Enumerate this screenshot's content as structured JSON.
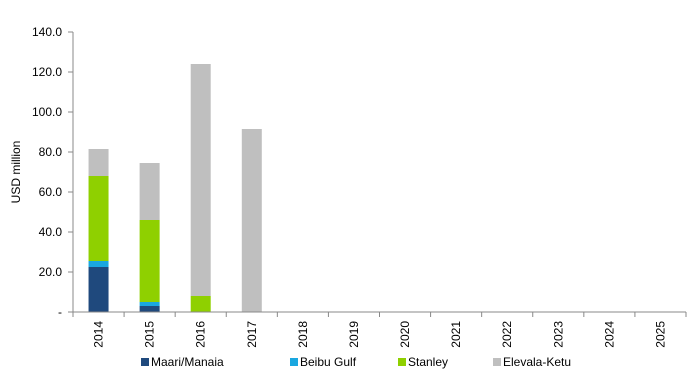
{
  "chart_data": {
    "type": "bar",
    "stacked": true,
    "categories": [
      "2014",
      "2015",
      "2016",
      "2017",
      "2018",
      "2019",
      "2020",
      "2021",
      "2022",
      "2023",
      "2024",
      "2025"
    ],
    "series": [
      {
        "name": "Maari/Manaia",
        "color": "#1f497d",
        "values": [
          22.5,
          3,
          0,
          0,
          0,
          0,
          0,
          0,
          0,
          0,
          0,
          0
        ]
      },
      {
        "name": "Beibu Gulf",
        "color": "#1aa7e0",
        "values": [
          3,
          2,
          0,
          0,
          0,
          0,
          0,
          0,
          0,
          0,
          0,
          0
        ]
      },
      {
        "name": "Stanley",
        "color": "#8fd000",
        "values": [
          42.5,
          41,
          8,
          0,
          0,
          0,
          0,
          0,
          0,
          0,
          0,
          0
        ]
      },
      {
        "name": "Elevala-Ketu",
        "color": "#bfbfbf",
        "values": [
          13.5,
          28.5,
          116,
          91.5,
          0,
          0,
          0,
          0,
          0,
          0,
          0,
          0
        ]
      }
    ],
    "ylabel": "USD million",
    "xlabel": "",
    "title": "",
    "ylim": [
      0,
      140
    ],
    "y_ticks": [
      0,
      20,
      40,
      60,
      80,
      100,
      120,
      140
    ],
    "y_tick_labels": [
      "-",
      "20.0",
      "40.0",
      "60.0",
      "80.0",
      "100.0",
      "120.0",
      "140.0"
    ],
    "grid": false,
    "legend_position": "bottom"
  }
}
